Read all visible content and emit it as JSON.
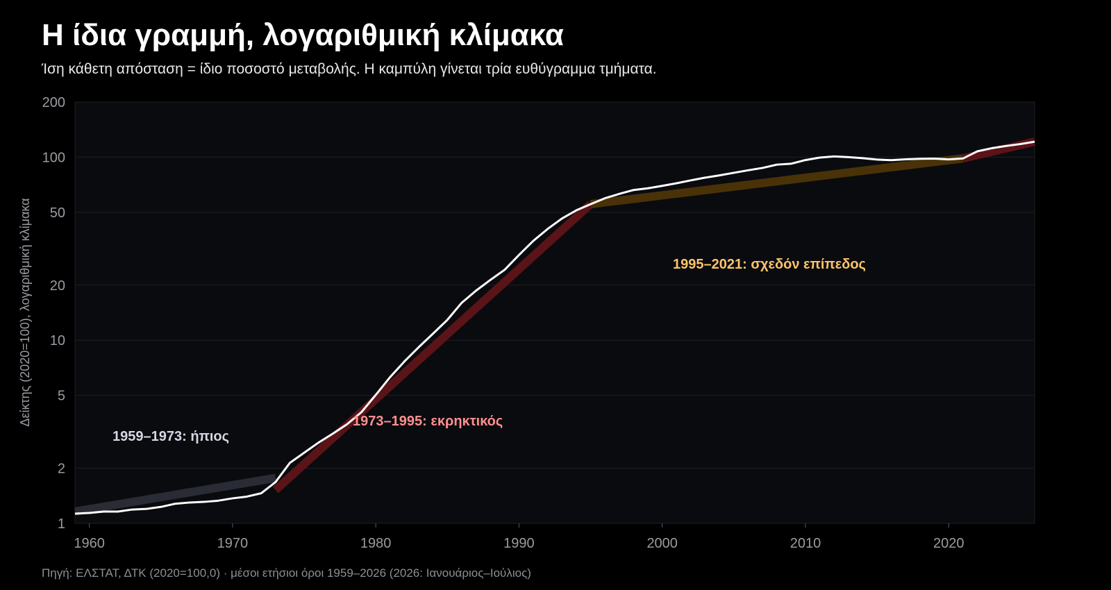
{
  "header": {
    "title": "Η ίδια γραμμή, λογαριθμική κλίμακα",
    "subtitle": "Ίση κάθετη απόσταση = ίδιο ποσοστό μεταβολής. Η καμπύλη γίνεται τρία ευθύγραμμα τμήματα."
  },
  "footer": {
    "source": "Πηγή: ΕΛΣΤΑΤ, ΔΤΚ (2020=100,0) · μέσοι ετήσιοι όροι 1959–2026 (2026: Ιανουάριος–Ιούλιος)"
  },
  "colors": {
    "background": "#000000",
    "plot_background": "#0a0b0e",
    "grid": "#1c1f26",
    "line": "#ffffff",
    "segment_1": "#2a2c35",
    "segment_2": "#5a1418",
    "segment_3": "#4a3208",
    "annotation_1": "#d4d8e3",
    "annotation_2": "#ff8f8f",
    "annotation_3": "#ffc46b"
  },
  "chart_data": {
    "type": "line",
    "title": "Η ίδια γραμμή, λογαριθμική κλίμακα",
    "subtitle": "Ίση κάθετη απόσταση = ίδιο ποσοστό μεταβολής. Η καμπύλη γίνεται τρία ευθύγραμμα τμήματα.",
    "xlabel": "",
    "ylabel": "Δείκτης (2020=100), λογαριθμική κλίμακα",
    "yscale": "log",
    "xlim": [
      1959,
      2026
    ],
    "ylim": [
      1,
      200
    ],
    "xticks": [
      1960,
      1970,
      1980,
      1990,
      2000,
      2010,
      2020
    ],
    "yticks": [
      1,
      2,
      5,
      10,
      20,
      50,
      100,
      200
    ],
    "grid": true,
    "series": [
      {
        "x": [
          1959,
          1960,
          1961,
          1962,
          1963,
          1964,
          1965,
          1966,
          1967,
          1968,
          1969,
          1970,
          1971,
          1972,
          1973,
          1974,
          1975,
          1976,
          1977,
          1978,
          1979,
          1980,
          1981,
          1982,
          1983,
          1984,
          1985,
          1986,
          1987,
          1988,
          1989,
          1990,
          1991,
          1992,
          1993,
          1994,
          1995,
          1996,
          1997,
          1998,
          1999,
          2000,
          2001,
          2002,
          2003,
          2004,
          2005,
          2006,
          2007,
          2008,
          2009,
          2010,
          2011,
          2012,
          2013,
          2014,
          2015,
          2016,
          2017,
          2018,
          2019,
          2020,
          2021,
          2022,
          2023,
          2024,
          2025,
          2026
        ],
        "values": [
          1.13,
          1.14,
          1.16,
          1.16,
          1.19,
          1.2,
          1.23,
          1.28,
          1.3,
          1.31,
          1.33,
          1.37,
          1.4,
          1.46,
          1.68,
          2.14,
          2.43,
          2.76,
          3.09,
          3.48,
          4.05,
          5.03,
          6.29,
          7.66,
          9.17,
          10.87,
          12.93,
          16.02,
          18.66,
          21.35,
          24.27,
          29.23,
          34.92,
          40.54,
          46.23,
          51.22,
          55.37,
          59.66,
          62.99,
          66.17,
          67.61,
          69.7,
          72.05,
          74.71,
          77.3,
          79.53,
          82.15,
          84.8,
          87.34,
          91.02,
          92.09,
          96.42,
          99.45,
          100.95,
          100.03,
          98.72,
          97.0,
          96.24,
          97.33,
          97.94,
          98.2,
          97.21,
          98.37,
          107.6,
          111.9,
          115.1,
          117.9,
          121.5
        ]
      }
    ],
    "trend_segments": [
      {
        "label": "1959–1973: ήπιος",
        "x": [
          1959,
          1973
        ],
        "values": [
          1.16,
          1.77
        ]
      },
      {
        "label": "1973–1995: εκρηκτικός",
        "x": [
          1973,
          1995
        ],
        "values": [
          1.52,
          55.4
        ]
      },
      {
        "label": "1995–2021: σχεδόν επίπεδος",
        "x": [
          1995,
          2021
        ],
        "values": [
          55.4,
          98.4
        ]
      },
      {
        "label": "",
        "x": [
          2021,
          2026
        ],
        "values": [
          98.4,
          121.5
        ]
      }
    ]
  }
}
